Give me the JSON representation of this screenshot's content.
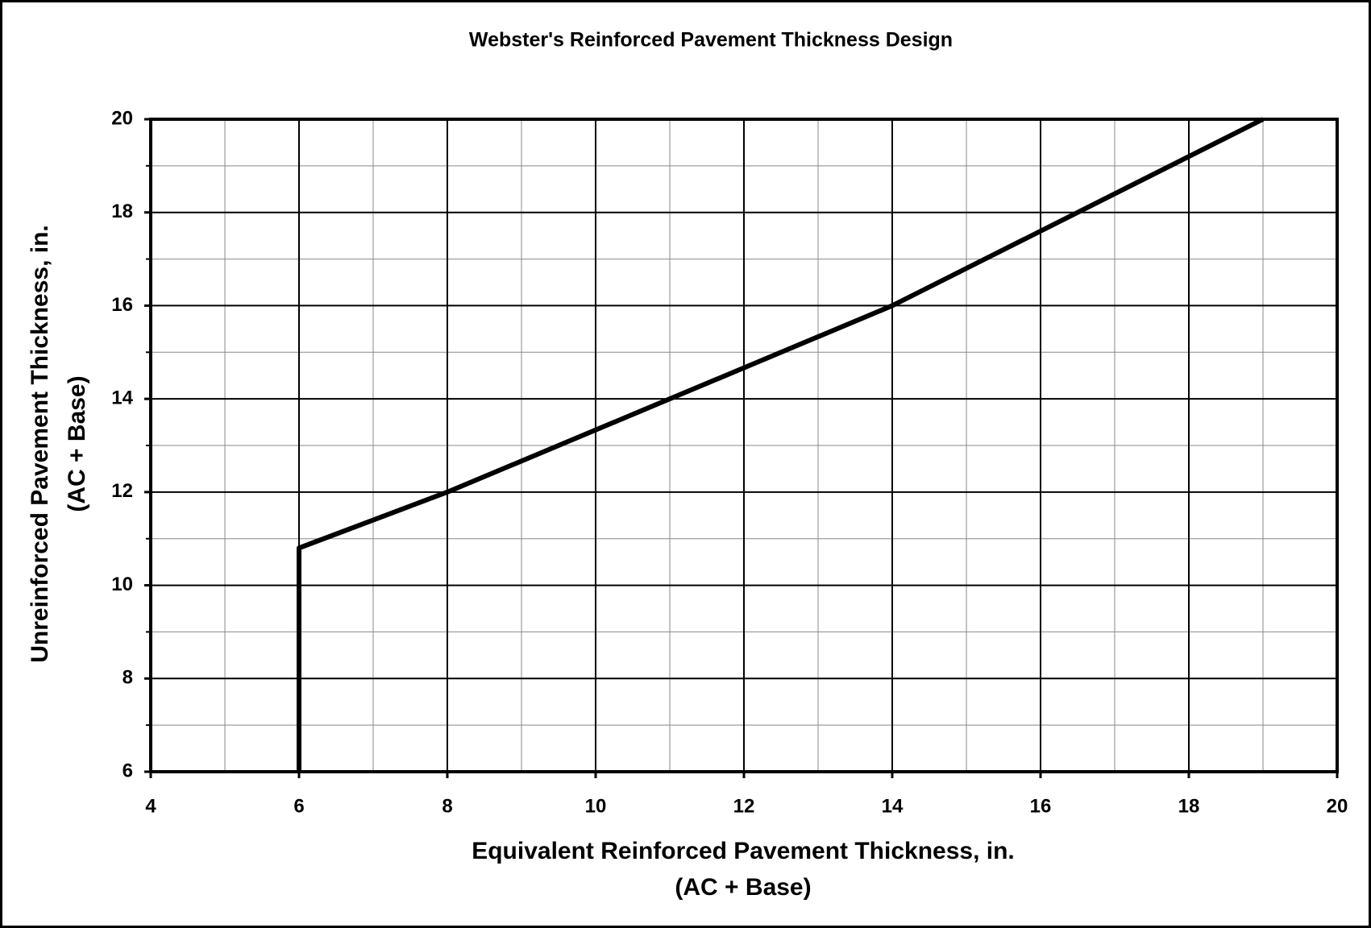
{
  "chart_data": {
    "type": "line",
    "title": "Webster's Reinforced Pavement Thickness Design",
    "x_label": [
      "Equivalent Reinforced Pavement Thickness, in.",
      "(AC + Base)"
    ],
    "y_label": [
      "Unreinforced Pavement Thickness, in.",
      "(AC + Base)"
    ],
    "x": [
      6,
      6,
      8,
      14,
      19
    ],
    "series": [
      {
        "name": "Webster",
        "color": "#000000",
        "values": [
          6,
          10.8,
          12,
          16,
          20
        ]
      }
    ],
    "xlim": [
      4,
      20
    ],
    "ylim": [
      6,
      20
    ],
    "xticks": [
      4,
      6,
      8,
      10,
      12,
      14,
      16,
      18,
      20
    ],
    "yticks": [
      6,
      8,
      10,
      12,
      14,
      16,
      18,
      20
    ],
    "grid": true,
    "minor_grid": true
  }
}
